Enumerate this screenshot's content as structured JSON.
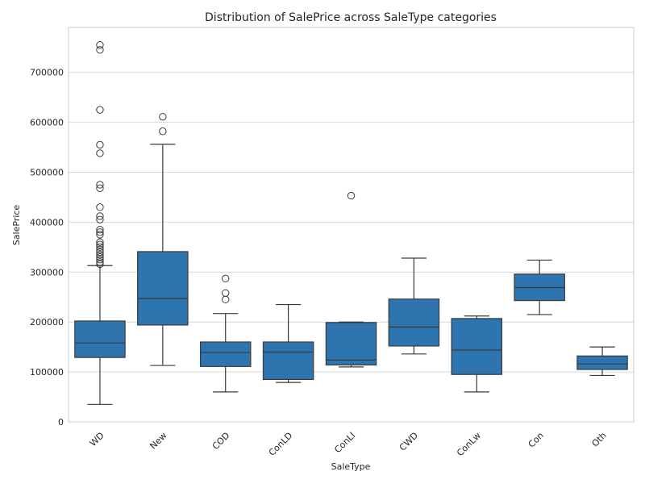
{
  "chart_data": {
    "type": "box",
    "title": "Distribution of SalePrice across SaleType categories",
    "xlabel": "SaleType",
    "ylabel": "SalePrice",
    "ylim": [
      0,
      790000
    ],
    "yticks": [
      0,
      100000,
      200000,
      300000,
      400000,
      500000,
      600000,
      700000
    ],
    "ytick_labels": [
      "0",
      "100000",
      "200000",
      "300000",
      "400000",
      "500000",
      "600000",
      "700000"
    ],
    "grid": true,
    "box_color": "#2e75b0",
    "line_color": "#3a3a3a",
    "categories": [
      "WD",
      "New",
      "COD",
      "ConLD",
      "ConLI",
      "CWD",
      "ConLw",
      "Con",
      "Oth"
    ],
    "boxes": [
      {
        "category": "WD",
        "whisker_low": 35000,
        "q1": 129000,
        "median": 158000,
        "q3": 202000,
        "whisker_high": 313000,
        "outliers": [
          755000,
          745000,
          625000,
          555000,
          538000,
          475000,
          468000,
          430000,
          412000,
          405000,
          385000,
          380000,
          375000,
          360000,
          355000,
          350000,
          345000,
          340000,
          335000,
          330000,
          325000,
          320000,
          316000
        ]
      },
      {
        "category": "New",
        "whisker_low": 113000,
        "q1": 194000,
        "median": 247000,
        "q3": 341000,
        "whisker_high": 556000,
        "outliers": [
          611000,
          582000
        ]
      },
      {
        "category": "COD",
        "whisker_low": 60000,
        "q1": 111000,
        "median": 139000,
        "q3": 160000,
        "whisker_high": 217000,
        "outliers": [
          287000,
          258000,
          245000
        ]
      },
      {
        "category": "ConLD",
        "whisker_low": 79000,
        "q1": 85000,
        "median": 140000,
        "q3": 160000,
        "whisker_high": 235000,
        "outliers": []
      },
      {
        "category": "ConLI",
        "whisker_low": 110000,
        "q1": 114000,
        "median": 124000,
        "q3": 199000,
        "whisker_high": 200000,
        "outliers": [
          453000
        ]
      },
      {
        "category": "CWD",
        "whisker_low": 136000,
        "q1": 152000,
        "median": 190000,
        "q3": 246000,
        "whisker_high": 328000,
        "outliers": []
      },
      {
        "category": "ConLw",
        "whisker_low": 60000,
        "q1": 95000,
        "median": 144000,
        "q3": 207000,
        "whisker_high": 212000,
        "outliers": []
      },
      {
        "category": "Con",
        "whisker_low": 215000,
        "q1": 243000,
        "median": 269000,
        "q3": 296000,
        "whisker_high": 324000,
        "outliers": []
      },
      {
        "category": "Oth",
        "whisker_low": 93000,
        "q1": 105000,
        "median": 116000,
        "q3": 132000,
        "whisker_high": 150000,
        "outliers": []
      }
    ]
  }
}
